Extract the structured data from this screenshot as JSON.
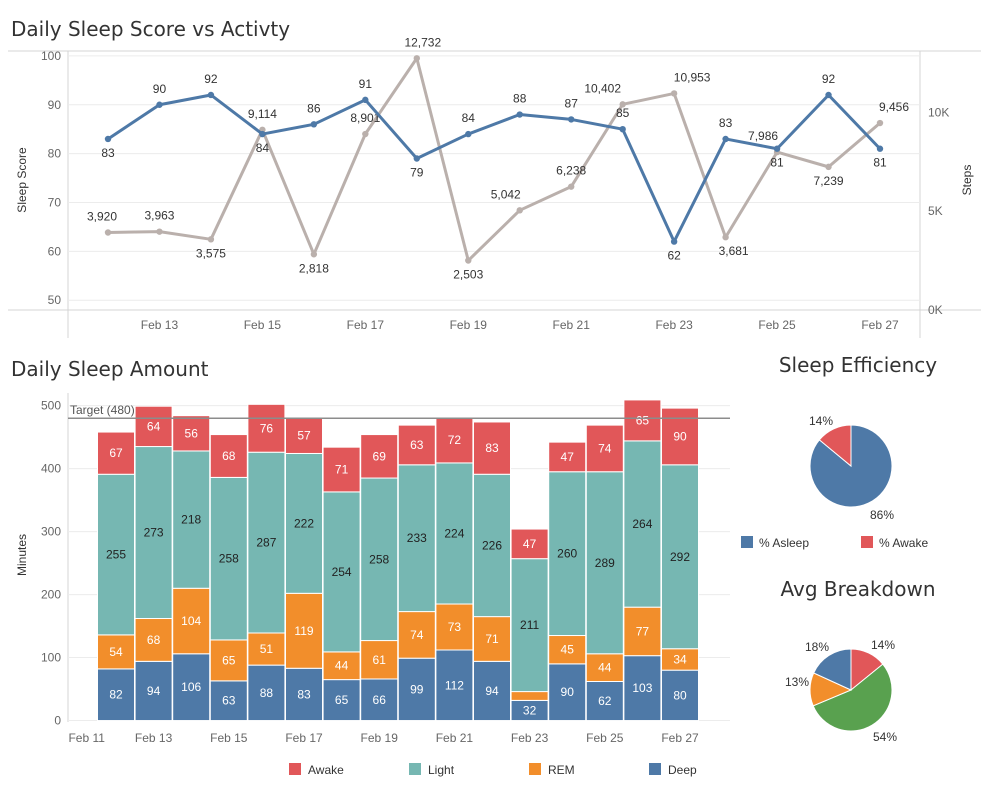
{
  "charts": {
    "score_vs_activity": {
      "title": "Daily Sleep Score vs Activty",
      "left_axis_label": "Sleep Score",
      "right_axis_label": "Steps",
      "left_ticks": [
        "50",
        "60",
        "70",
        "80",
        "90",
        "100"
      ],
      "right_ticks": [
        "0K",
        "5K",
        "10K"
      ]
    },
    "sleep_amount": {
      "title": "Daily Sleep Amount",
      "y_axis_label": "Minutes",
      "target_label": "Target (480)",
      "y_ticks": [
        "0",
        "100",
        "200",
        "300",
        "400",
        "500"
      ]
    },
    "efficiency": {
      "title": "Sleep Efficiency",
      "labels": [
        "86%",
        "14%"
      ],
      "legend": [
        "% Asleep",
        "% Awake"
      ]
    },
    "breakdown": {
      "title": "Avg Breakdown",
      "labels": [
        "54%",
        "13%",
        "18%",
        "14%"
      ]
    },
    "stage_legend": [
      "Awake",
      "Light",
      "REM",
      "Deep"
    ]
  },
  "chart_data": [
    {
      "type": "line",
      "title": "Daily Sleep Score vs Activty",
      "x": [
        "Feb 12",
        "Feb 13",
        "Feb 14",
        "Feb 15",
        "Feb 16",
        "Feb 17",
        "Feb 18",
        "Feb 19",
        "Feb 20",
        "Feb 21",
        "Feb 22",
        "Feb 23",
        "Feb 24",
        "Feb 25",
        "Feb 26",
        "Feb 27"
      ],
      "x_tick_labels": [
        "Feb 13",
        "Feb 15",
        "Feb 17",
        "Feb 19",
        "Feb 21",
        "Feb 23",
        "Feb 25",
        "Feb 27"
      ],
      "ylabel": "Sleep Score",
      "ylim": [
        48,
        101
      ],
      "y2label": "Steps",
      "y2lim": [
        0,
        13100
      ],
      "series": [
        {
          "name": "Sleep Score",
          "axis": "left",
          "color": "#4e79a7",
          "values": [
            83,
            90,
            92,
            84,
            86,
            91,
            79,
            84,
            88,
            87,
            85,
            62,
            83,
            81,
            92,
            81
          ],
          "labels": [
            "83",
            "90",
            "92",
            "84",
            "86",
            "91",
            "79",
            "84",
            "88",
            "87",
            "85",
            "62",
            "83",
            "81",
            "92",
            "81"
          ]
        },
        {
          "name": "Steps",
          "axis": "right",
          "color": "#bab0ac",
          "values": [
            3920,
            3963,
            3575,
            9114,
            2818,
            8901,
            12732,
            2503,
            5042,
            6238,
            10402,
            10953,
            3681,
            7986,
            7239,
            9456
          ],
          "labels": [
            "3,920",
            "3,963",
            "3,575",
            "9,114",
            "2,818",
            "8,901",
            "12,732",
            "2,503",
            "5,042",
            "6,238",
            "10,402",
            "10,953",
            "3,681",
            "7,986",
            "7,239",
            "9,456"
          ]
        }
      ],
      "grid": true
    },
    {
      "type": "bar",
      "stacked": true,
      "title": "Daily Sleep Amount",
      "categories": [
        "Feb 12",
        "Feb 13",
        "Feb 14",
        "Feb 15",
        "Feb 16",
        "Feb 17",
        "Feb 18",
        "Feb 19",
        "Feb 20",
        "Feb 21",
        "Feb 22",
        "Feb 23",
        "Feb 24",
        "Feb 25",
        "Feb 26",
        "Feb 27"
      ],
      "x_tick_labels": [
        "Feb 11",
        "Feb 13",
        "Feb 15",
        "Feb 17",
        "Feb 19",
        "Feb 21",
        "Feb 23",
        "Feb 25",
        "Feb 27"
      ],
      "ylabel": "Minutes",
      "ylim": [
        -15,
        520
      ],
      "target": 480,
      "series": [
        {
          "name": "Deep",
          "color": "#4e79a7",
          "values": [
            82,
            94,
            106,
            63,
            88,
            83,
            65,
            66,
            99,
            112,
            94,
            32,
            90,
            62,
            103,
            80
          ]
        },
        {
          "name": "REM",
          "color": "#f28e2b",
          "values": [
            54,
            68,
            104,
            65,
            51,
            119,
            44,
            61,
            74,
            73,
            71,
            14,
            45,
            44,
            77,
            34
          ]
        },
        {
          "name": "Light",
          "color": "#76b7b2",
          "values": [
            255,
            273,
            218,
            258,
            287,
            222,
            254,
            258,
            233,
            224,
            226,
            211,
            260,
            289,
            264,
            292
          ]
        },
        {
          "name": "Awake",
          "color": "#e15759",
          "values": [
            67,
            64,
            56,
            68,
            76,
            57,
            71,
            69,
            63,
            72,
            83,
            47,
            47,
            74,
            65,
            90
          ]
        }
      ],
      "label_hidden": [
        {
          "series": "REM",
          "index": 11
        }
      ],
      "legend": "bottom",
      "grid": true
    },
    {
      "type": "pie",
      "title": "Sleep Efficiency",
      "slices": [
        {
          "name": "% Asleep",
          "value": 86,
          "color": "#4e79a7"
        },
        {
          "name": "% Awake",
          "value": 14,
          "color": "#e15759"
        }
      ],
      "legend": "bottom"
    },
    {
      "type": "pie",
      "title": "Avg Breakdown",
      "slices": [
        {
          "name": "Awake",
          "value": 14,
          "color": "#e15759"
        },
        {
          "name": "Light",
          "value": 54,
          "color": "#59a14f"
        },
        {
          "name": "REM",
          "value": 13,
          "color": "#f28e2b"
        },
        {
          "name": "Deep",
          "value": 18,
          "color": "#4e79a7"
        }
      ]
    }
  ]
}
